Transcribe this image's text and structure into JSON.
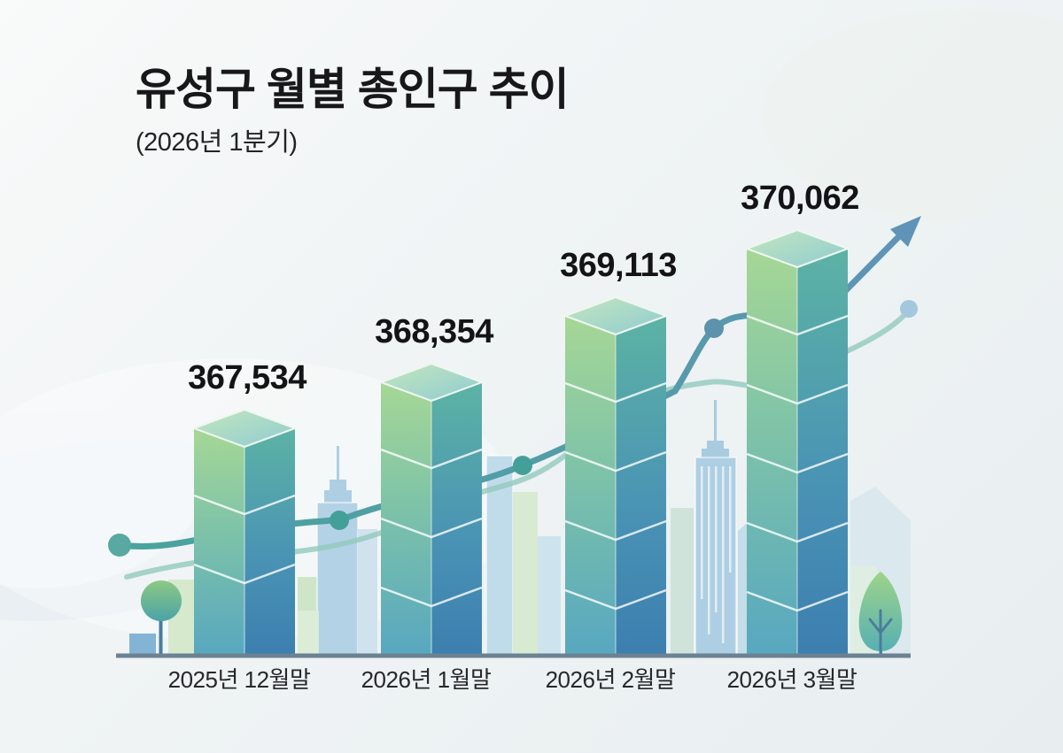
{
  "header": {
    "title": "유성구 월별 총인구 추이",
    "subtitle": "(2026년 1분기)"
  },
  "chart_data": {
    "type": "bar",
    "title": "유성구 월별 총인구 추이",
    "subtitle": "(2026년 1분기)",
    "categories": [
      "2025년 12월말",
      "2026년 1월말",
      "2026년 2월말",
      "2026년 3월말"
    ],
    "values": [
      367534,
      368354,
      369113,
      370062
    ],
    "value_labels": [
      "367,534",
      "368,354",
      "369,113",
      "370,062"
    ],
    "xlabel": "",
    "ylabel": "",
    "ylim": [
      367000,
      370500
    ],
    "grid": false,
    "legend": false,
    "trend": "increasing",
    "bar_style": "isometric-3d-column"
  },
  "colors": {
    "bar_left_top": "#a6d795",
    "bar_left_bottom": "#57a7c0",
    "bar_right_top": "#5cb3a4",
    "bar_right_bottom": "#3c7fb0",
    "bar_top_face": "#b7ddbc",
    "trend_line_dark": "#5f93b8",
    "trend_line_light": "#92c9bd",
    "baseline": "#6b8292",
    "label_text": "#141416",
    "background": "#eef2f3"
  },
  "icons": {
    "trend_arrow": "up-right-arrow-icon",
    "left_tree": "tree-icon",
    "right_tree": "tree-icon",
    "skyline": "city-buildings"
  }
}
